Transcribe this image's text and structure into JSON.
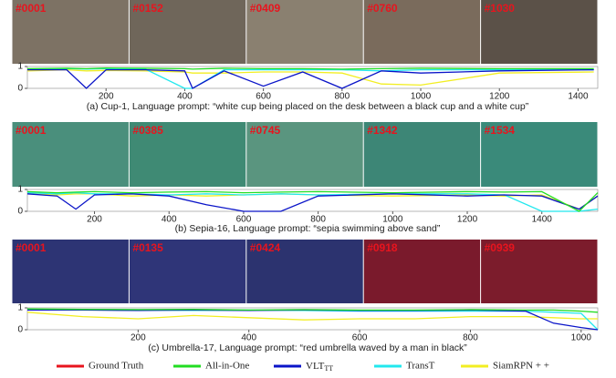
{
  "legend": [
    {
      "name": "Ground Truth",
      "color": "#e8141e"
    },
    {
      "name": "All-in-One",
      "color": "#22dd22"
    },
    {
      "name": {
        "text": "VLT",
        "sub": "TT"
      },
      "color": "#0a14c8"
    },
    {
      "name": "TransT",
      "color": "#22e8ee"
    },
    {
      "name": "SiamRPN + +",
      "color": "#f2ee22"
    }
  ],
  "panels": [
    {
      "frames": [
        "#0001",
        "#0152",
        "#0409",
        "#0760",
        "#1030"
      ],
      "chart": {
        "type": "line",
        "xlim": [
          0,
          1450
        ],
        "xticks": [
          200,
          400,
          600,
          800,
          1000,
          1200,
          1400
        ],
        "ylim": [
          0,
          1
        ],
        "yticks": [
          0,
          1
        ],
        "x": [
          0,
          100,
          150,
          200,
          300,
          400,
          420,
          500,
          600,
          700,
          800,
          900,
          1000,
          1200,
          1440
        ],
        "series": [
          {
            "values": [
              0.9,
              0.92,
              0.9,
              0.93,
              0.92,
              0.9,
              0.88,
              0.92,
              0.9,
              0.9,
              0.88,
              0.9,
              0.92,
              0.9,
              0.9
            ]
          },
          {
            "values": [
              0.85,
              0.85,
              0,
              0.85,
              0.85,
              0.8,
              0,
              0.8,
              0.1,
              0.75,
              0,
              0.8,
              0.7,
              0.8,
              0.85
            ]
          },
          {
            "values": [
              0.88,
              0.9,
              0.88,
              0.9,
              0.88,
              0,
              0,
              0.85,
              0.85,
              0.85,
              0.85,
              0.8,
              0.85,
              0.85,
              0.85
            ]
          },
          {
            "values": [
              0.8,
              0.85,
              0.8,
              0.82,
              0.8,
              0.75,
              0.7,
              0.7,
              0.75,
              0.75,
              0.7,
              0.2,
              0.15,
              0.7,
              0.75
            ]
          }
        ]
      },
      "caption": "(a) Cup-1, Language prompt: “white cup being placed on the desk between a black cup and a white cup”"
    },
    {
      "frames": [
        "#0001",
        "#0385",
        "#0745",
        "#1342",
        "#1534"
      ],
      "chart": {
        "type": "line",
        "xlim": [
          20,
          1550
        ],
        "xticks": [
          200,
          400,
          600,
          800,
          1000,
          1200,
          1400
        ],
        "ylim": [
          0,
          1
        ],
        "yticks": [
          0,
          1
        ],
        "x": [
          20,
          100,
          150,
          200,
          300,
          400,
          500,
          600,
          700,
          800,
          1000,
          1200,
          1300,
          1400,
          1500,
          1550
        ],
        "series": [
          {
            "values": [
              0.9,
              0.85,
              0.88,
              0.9,
              0.85,
              0.88,
              0.9,
              0.85,
              0.88,
              0.9,
              0.85,
              0.9,
              0.88,
              0.9,
              0,
              0.85
            ]
          },
          {
            "values": [
              0.8,
              0.7,
              0.1,
              0.75,
              0.8,
              0.7,
              0.3,
              0,
              0,
              0.7,
              0.8,
              0.7,
              0.75,
              0.7,
              0.1,
              0.7
            ]
          },
          {
            "values": [
              0.85,
              0.8,
              0.85,
              0.8,
              0.8,
              0.75,
              0.8,
              0.75,
              0.8,
              0.75,
              0.8,
              0.8,
              0.75,
              0,
              0,
              0.1
            ]
          },
          {
            "values": [
              0.8,
              0.75,
              0.8,
              0.8,
              0.7,
              0.75,
              0.7,
              0.75,
              0.8,
              0.75,
              0.7,
              0.75,
              0.7,
              0.75,
              0.1,
              0.7
            ]
          }
        ]
      },
      "caption": "(b) Sepia-16, Language prompt: “sepia swimming above sand”"
    },
    {
      "frames": [
        "#0001",
        "#0135",
        "#0424",
        "#0918",
        "#0939"
      ],
      "chart": {
        "type": "line",
        "xlim": [
          0,
          1030
        ],
        "xticks": [
          200,
          400,
          600,
          800,
          1000
        ],
        "ylim": [
          0,
          1
        ],
        "yticks": [
          0,
          1
        ],
        "x": [
          0,
          100,
          200,
          300,
          400,
          500,
          600,
          700,
          800,
          900,
          950,
          1000,
          1030
        ],
        "series": [
          {
            "values": [
              0.95,
              0.93,
              0.92,
              0.93,
              0.9,
              0.92,
              0.9,
              0.9,
              0.92,
              0.9,
              0.9,
              0.85,
              0.8
            ]
          },
          {
            "values": [
              0.9,
              0.9,
              0.88,
              0.9,
              0.88,
              0.9,
              0.88,
              0.88,
              0.9,
              0.85,
              0.3,
              0.1,
              0
            ]
          },
          {
            "values": [
              0.92,
              0.9,
              0.9,
              0.88,
              0.9,
              0.88,
              0.85,
              0.85,
              0.85,
              0.85,
              0.8,
              0.75,
              0
            ]
          },
          {
            "values": [
              0.8,
              0.6,
              0.5,
              0.65,
              0.55,
              0.45,
              0.5,
              0.5,
              0.6,
              0.6,
              0.55,
              0.5,
              0.5
            ]
          }
        ]
      },
      "caption": "(c) Umbrella-17, Language prompt: “red umbrella waved by a man in black”"
    }
  ]
}
